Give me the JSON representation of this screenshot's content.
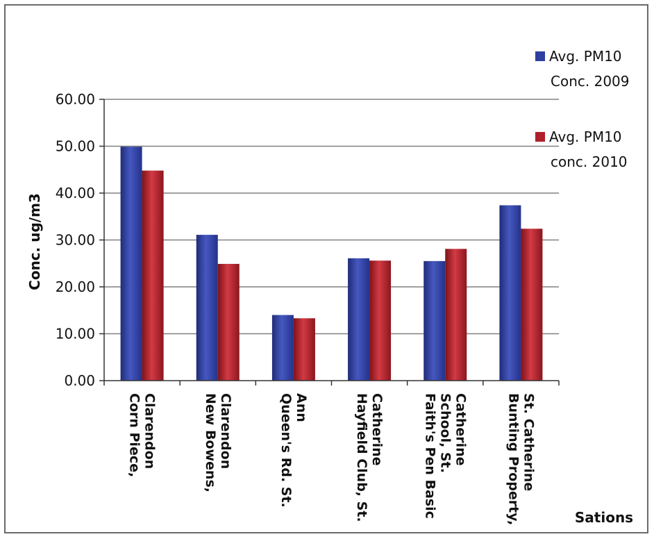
{
  "chart_data": {
    "type": "bar",
    "title": "",
    "ylabel": "Conc. ug/m3",
    "xlabel": "Sations",
    "ylim": [
      0,
      60
    ],
    "yticks": [
      "0.00",
      "10.00",
      "20.00",
      "30.00",
      "40.00",
      "50.00",
      "60.00"
    ],
    "grid": true,
    "legend_position": "right",
    "categories": [
      [
        "Corn Piece,",
        "Clarendon"
      ],
      [
        "New Bowens,",
        "Clarendon"
      ],
      [
        "Queen's Rd. St.",
        "Ann"
      ],
      [
        "Hayfield Club, St.",
        "Catherine"
      ],
      [
        "Faith's Pen Basic",
        "School, St.",
        "Catherine"
      ],
      [
        "Bunting Property,",
        "St. Catherine"
      ]
    ],
    "series": [
      {
        "name": [
          "Avg. PM10",
          "Conc. 2009"
        ],
        "color": "#2e3fa0",
        "values": [
          49.9,
          31.1,
          14.0,
          26.1,
          25.5,
          37.4
        ]
      },
      {
        "name": [
          "Avg. PM10",
          "conc. 2010"
        ],
        "color": "#b0202a",
        "values": [
          44.8,
          24.9,
          13.3,
          25.6,
          28.1,
          32.4
        ]
      }
    ]
  }
}
